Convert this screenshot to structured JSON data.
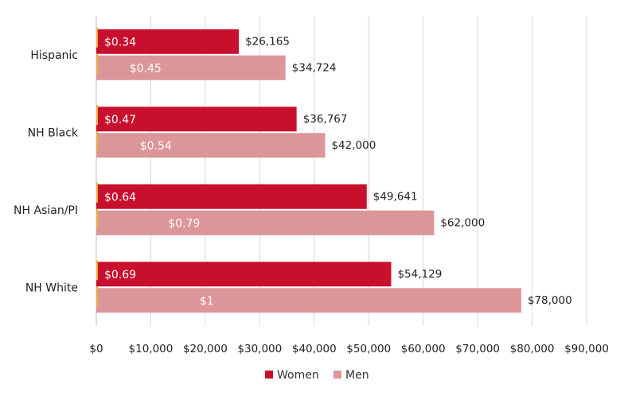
{
  "chart_data": {
    "type": "bar",
    "orientation": "horizontal",
    "categories": [
      "Hispanic",
      "NH Black",
      "NH Asian/PI",
      "NH White"
    ],
    "series": [
      {
        "name": "Women",
        "color": "#c8102e",
        "values": [
          26165,
          36767,
          49641,
          54129
        ],
        "value_labels": [
          "$26,165",
          "$36,767",
          "$49,641",
          "$54,129"
        ],
        "ratio_labels": [
          "$0.34",
          "$0.47",
          "$0.64",
          "$0.69"
        ]
      },
      {
        "name": "Men",
        "color": "#dc9598",
        "values": [
          34724,
          42000,
          62000,
          78000
        ],
        "value_labels": [
          "$34,724",
          "$42,000",
          "$62,000",
          "$78,000"
        ],
        "ratio_labels": [
          "$0.45",
          "$0.54",
          "$0.79",
          "$1"
        ]
      }
    ],
    "xlim": [
      0,
      90000
    ],
    "x_ticks": [
      0,
      10000,
      20000,
      30000,
      40000,
      50000,
      60000,
      70000,
      80000,
      90000
    ],
    "x_tick_labels": [
      "$0",
      "$10,000",
      "$20,000",
      "$30,000",
      "$40,000",
      "$50,000",
      "$60,000",
      "$70,000",
      "$80,000",
      "$90,000"
    ],
    "grid": true,
    "legend_position": "bottom"
  }
}
